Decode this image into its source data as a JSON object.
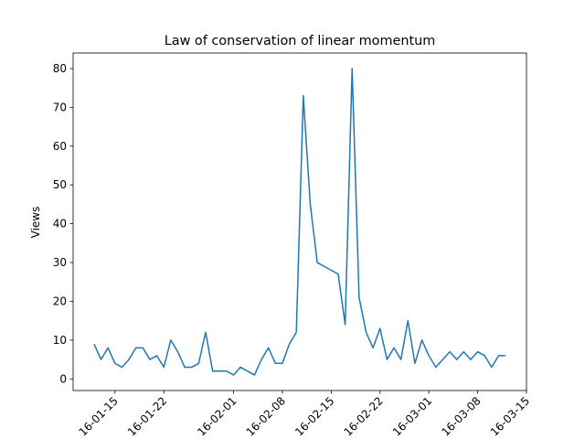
{
  "chart_data": {
    "type": "line",
    "title": "Law of conservation of linear momentum",
    "y_label": "Views",
    "x": [
      "01-12",
      "01-13",
      "01-14",
      "01-15",
      "01-16",
      "01-17",
      "01-18",
      "01-19",
      "01-20",
      "01-21",
      "01-22",
      "01-23",
      "01-24",
      "01-25",
      "01-26",
      "01-27",
      "01-28",
      "01-29",
      "01-30",
      "01-31",
      "02-01",
      "02-02",
      "02-03",
      "02-04",
      "02-05",
      "02-06",
      "02-07",
      "02-08",
      "02-09",
      "02-10",
      "02-11",
      "02-12",
      "02-13",
      "02-14",
      "02-15",
      "02-16",
      "02-17",
      "02-18",
      "02-19",
      "02-20",
      "02-21",
      "02-22",
      "02-23",
      "02-24",
      "02-25",
      "02-26",
      "02-27",
      "02-28",
      "03-01",
      "03-02",
      "03-03",
      "03-04",
      "03-05",
      "03-06",
      "03-07",
      "03-08",
      "03-09",
      "03-10",
      "03-11",
      "03-12"
    ],
    "series": [
      {
        "name": "Views",
        "color": "#1f77b4",
        "values": [
          9,
          5,
          8,
          4,
          3,
          5,
          8,
          8,
          5,
          6,
          3,
          10,
          7,
          3,
          3,
          4,
          12,
          2,
          2,
          2,
          1,
          3,
          2,
          1,
          5,
          8,
          4,
          4,
          9,
          12,
          73,
          45,
          30,
          29,
          28,
          27,
          14,
          80,
          21,
          12,
          8,
          13,
          5,
          8,
          5,
          15,
          4,
          10,
          6,
          3,
          5,
          7,
          5,
          7,
          5,
          7,
          6,
          3,
          6,
          6
        ]
      }
    ],
    "xlim": [
      "01-09",
      "03-15"
    ],
    "xticks": [
      {
        "value": "01-15",
        "label": "16-01-15"
      },
      {
        "value": "01-22",
        "label": "16-01-22"
      },
      {
        "value": "02-01",
        "label": "16-02-01"
      },
      {
        "value": "02-08",
        "label": "16-02-08"
      },
      {
        "value": "02-15",
        "label": "16-02-15"
      },
      {
        "value": "02-22",
        "label": "16-02-22"
      },
      {
        "value": "03-01",
        "label": "16-03-01"
      },
      {
        "value": "03-08",
        "label": "16-03-08"
      },
      {
        "value": "03-15",
        "label": "16-03-15"
      }
    ],
    "ylim": [
      -3,
      84
    ],
    "yticks": [
      0,
      10,
      20,
      30,
      40,
      50,
      60,
      70,
      80
    ]
  }
}
